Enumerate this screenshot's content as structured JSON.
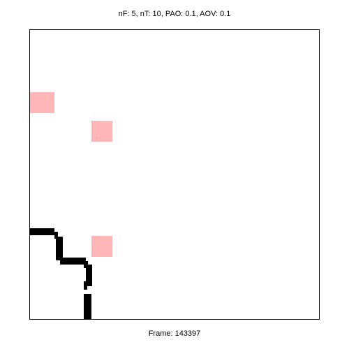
{
  "header": {
    "title": "nF: 5, nT: 10, PAO: 0.1, AOV: 0.1"
  },
  "footer": {
    "frame_label": "Frame: 143397"
  },
  "colors": {
    "background": "#ffffff",
    "food": "#ffb6b9",
    "trail": "#000000",
    "border": "#000000"
  }
}
